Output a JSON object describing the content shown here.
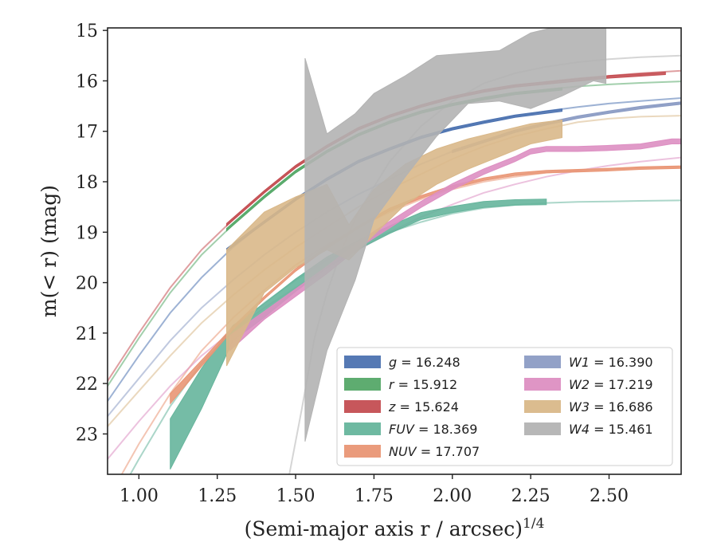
{
  "chart_data": {
    "type": "line",
    "xlabel": "(Semi-major axis r / arcsec)",
    "xlabel_exponent": "1/4",
    "ylabel": "m(< r) (mag)",
    "xlim": [
      0.9,
      2.73
    ],
    "ylim": [
      23.8,
      14.95
    ],
    "y_inverted": true,
    "grid": false,
    "legend_position": "lower-right",
    "xticks": [
      "1.00",
      "1.25",
      "1.50",
      "1.75",
      "2.00",
      "2.25",
      "2.50"
    ],
    "yticks": [
      "15",
      "16",
      "17",
      "18",
      "19",
      "20",
      "21",
      "22",
      "23"
    ],
    "series": [
      {
        "name": "g",
        "total": "16.248",
        "color": "#4c72b0",
        "model_x": [
          0.9,
          1.0,
          1.1,
          1.2,
          1.3,
          1.4,
          1.5,
          1.6,
          1.7,
          1.8,
          1.9,
          2.0,
          2.1,
          2.2,
          2.3,
          2.4,
          2.5,
          2.6,
          2.73
        ],
        "model_y": [
          22.35,
          21.45,
          20.6,
          19.9,
          19.3,
          18.8,
          18.35,
          17.95,
          17.6,
          17.35,
          17.12,
          16.95,
          16.82,
          16.7,
          16.6,
          16.52,
          16.45,
          16.4,
          16.34
        ],
        "band_x": [
          1.28,
          1.4,
          1.5,
          1.6,
          1.7,
          1.8,
          1.9,
          2.0,
          2.1,
          2.2,
          2.35
        ],
        "band_y": [
          19.35,
          18.8,
          18.35,
          17.95,
          17.6,
          17.35,
          17.12,
          16.95,
          16.82,
          16.7,
          16.58
        ],
        "band_w": [
          0.05,
          0.05,
          0.05,
          0.05,
          0.05,
          0.05,
          0.05,
          0.05,
          0.05,
          0.05,
          0.05
        ]
      },
      {
        "name": "r",
        "total": "15.912",
        "color": "#55a868",
        "model_x": [
          0.9,
          1.0,
          1.1,
          1.2,
          1.3,
          1.4,
          1.5,
          1.6,
          1.7,
          1.8,
          1.9,
          2.0,
          2.1,
          2.2,
          2.3,
          2.4,
          2.5,
          2.6,
          2.73
        ],
        "model_y": [
          22.05,
          21.1,
          20.2,
          19.45,
          18.85,
          18.3,
          17.8,
          17.4,
          17.07,
          16.82,
          16.62,
          16.47,
          16.35,
          16.25,
          16.17,
          16.11,
          16.07,
          16.04,
          16.01
        ],
        "band_x": [
          1.28,
          1.4,
          1.5,
          1.6,
          1.7,
          1.8,
          1.9,
          2.0,
          2.1,
          2.2,
          2.35
        ],
        "band_y": [
          18.95,
          18.3,
          17.8,
          17.4,
          17.07,
          16.82,
          16.62,
          16.47,
          16.35,
          16.25,
          16.16
        ],
        "band_w": [
          0.05,
          0.05,
          0.05,
          0.05,
          0.05,
          0.05,
          0.05,
          0.05,
          0.05,
          0.05,
          0.05
        ]
      },
      {
        "name": "z",
        "total": "15.624",
        "color": "#c44e52",
        "model_x": [
          0.9,
          1.0,
          1.1,
          1.2,
          1.3,
          1.4,
          1.5,
          1.6,
          1.7,
          1.8,
          1.9,
          2.0,
          2.1,
          2.2,
          2.3,
          2.4,
          2.5,
          2.6,
          2.73
        ],
        "model_y": [
          21.95,
          21.0,
          20.1,
          19.35,
          18.75,
          18.2,
          17.7,
          17.3,
          16.95,
          16.7,
          16.5,
          16.33,
          16.2,
          16.1,
          16.02,
          15.95,
          15.9,
          15.85,
          15.8
        ],
        "band_x": [
          1.28,
          1.4,
          1.5,
          1.6,
          1.7,
          1.8,
          1.9,
          2.0,
          2.1,
          2.2,
          2.35,
          2.5,
          2.68
        ],
        "band_y": [
          18.85,
          18.2,
          17.7,
          17.3,
          16.95,
          16.7,
          16.5,
          16.33,
          16.2,
          16.1,
          16.01,
          15.92,
          15.85
        ],
        "band_w": [
          0.05,
          0.05,
          0.05,
          0.05,
          0.05,
          0.05,
          0.05,
          0.05,
          0.05,
          0.05,
          0.05,
          0.05,
          0.05
        ]
      },
      {
        "name": "FUV",
        "total": "18.369",
        "color": "#66b59c",
        "model_x": [
          0.9,
          1.0,
          1.1,
          1.2,
          1.3,
          1.4,
          1.5,
          1.6,
          1.7,
          1.8,
          1.9,
          2.0,
          2.1,
          2.2,
          2.3,
          2.4,
          2.5,
          2.6,
          2.73
        ],
        "model_y": [
          24.6,
          23.5,
          22.45,
          21.6,
          20.95,
          20.4,
          19.95,
          19.55,
          19.25,
          19.0,
          18.8,
          18.63,
          18.52,
          18.46,
          18.42,
          18.4,
          18.39,
          18.38,
          18.37
        ],
        "band_x": [
          1.1,
          1.2,
          1.3,
          1.4,
          1.5,
          1.6,
          1.7,
          1.8,
          1.9,
          2.0,
          2.1,
          2.2,
          2.3
        ],
        "band_y": [
          23.2,
          22.1,
          21.0,
          20.55,
          20.05,
          19.6,
          19.25,
          18.95,
          18.68,
          18.55,
          18.45,
          18.41,
          18.4
        ],
        "band_w": [
          1.0,
          0.8,
          0.3,
          0.28,
          0.25,
          0.22,
          0.18,
          0.15,
          0.14,
          0.12,
          0.12,
          0.11,
          0.11
        ]
      },
      {
        "name": "NUV",
        "total": "17.707",
        "color": "#e99675",
        "model_x": [
          0.9,
          1.0,
          1.1,
          1.2,
          1.3,
          1.4,
          1.5,
          1.6,
          1.7,
          1.8,
          1.9,
          2.0,
          2.1,
          2.2,
          2.3,
          2.4,
          2.5,
          2.6,
          2.73
        ],
        "model_y": [
          24.3,
          23.2,
          22.2,
          21.35,
          20.7,
          20.15,
          19.65,
          19.25,
          18.9,
          18.6,
          18.35,
          18.15,
          18.0,
          17.9,
          17.82,
          17.77,
          17.74,
          17.72,
          17.71
        ],
        "band_x": [
          1.1,
          1.2,
          1.3,
          1.4,
          1.5,
          1.6,
          1.7,
          1.8,
          1.9,
          2.0,
          2.1,
          2.2,
          2.3,
          2.4,
          2.5,
          2.6,
          2.73
        ],
        "band_y": [
          22.3,
          21.6,
          20.9,
          20.3,
          19.75,
          19.3,
          18.9,
          18.55,
          18.3,
          18.1,
          17.95,
          17.85,
          17.8,
          17.78,
          17.76,
          17.73,
          17.71
        ],
        "band_w": [
          0.2,
          0.12,
          0.06,
          0.05,
          0.05,
          0.05,
          0.05,
          0.05,
          0.05,
          0.05,
          0.05,
          0.05,
          0.05,
          0.05,
          0.05,
          0.05,
          0.05
        ]
      },
      {
        "name": "W1",
        "total": "16.390",
        "color": "#8c9cc4",
        "model_x": [
          0.9,
          1.0,
          1.1,
          1.2,
          1.3,
          1.4,
          1.5,
          1.6,
          1.7,
          1.8,
          1.9,
          2.0,
          2.1,
          2.2,
          2.3,
          2.4,
          2.5,
          2.6,
          2.73
        ],
        "model_y": [
          22.65,
          21.9,
          21.15,
          20.5,
          19.95,
          19.45,
          19.0,
          18.6,
          18.25,
          17.95,
          17.65,
          17.4,
          17.2,
          17.0,
          16.85,
          16.72,
          16.62,
          16.53,
          16.44
        ],
        "band_x": [
          2.0,
          2.1,
          2.2,
          2.3,
          2.4,
          2.5,
          2.6,
          2.73
        ],
        "band_y": [
          17.4,
          17.2,
          17.0,
          16.85,
          16.72,
          16.62,
          16.53,
          16.44
        ],
        "band_w": [
          0.05,
          0.05,
          0.05,
          0.05,
          0.05,
          0.05,
          0.05,
          0.05
        ]
      },
      {
        "name": "W2",
        "total": "17.219",
        "color": "#dd8fc2",
        "model_x": [
          0.9,
          1.0,
          1.1,
          1.2,
          1.3,
          1.4,
          1.5,
          1.6,
          1.7,
          1.8,
          1.9,
          2.0,
          2.1,
          2.2,
          2.3,
          2.4,
          2.5,
          2.6,
          2.73
        ],
        "model_y": [
          23.5,
          22.75,
          22.05,
          21.45,
          20.95,
          20.5,
          20.1,
          19.7,
          19.35,
          19.0,
          18.7,
          18.45,
          18.22,
          18.05,
          17.9,
          17.78,
          17.68,
          17.6,
          17.52
        ],
        "band_x": [
          1.29,
          1.4,
          1.5,
          1.6,
          1.7,
          1.8,
          1.9,
          2.0,
          2.1,
          2.2,
          2.25,
          2.3,
          2.4,
          2.5,
          2.6,
          2.7,
          2.73
        ],
        "band_y": [
          21.2,
          20.65,
          20.2,
          19.75,
          19.25,
          18.85,
          18.45,
          18.1,
          17.8,
          17.55,
          17.4,
          17.35,
          17.35,
          17.33,
          17.3,
          17.2,
          17.2
        ],
        "band_w": [
          0.3,
          0.16,
          0.15,
          0.14,
          0.13,
          0.13,
          0.12,
          0.12,
          0.11,
          0.1,
          0.1,
          0.1,
          0.1,
          0.1,
          0.1,
          0.1,
          0.1
        ]
      },
      {
        "name": "W3",
        "total": "16.686",
        "color": "#d9b889",
        "model_x": [
          0.9,
          1.0,
          1.1,
          1.2,
          1.3,
          1.4,
          1.5,
          1.6,
          1.7,
          1.8,
          1.9,
          2.0,
          2.1,
          2.2,
          2.3,
          2.4,
          2.5,
          2.6,
          2.73
        ],
        "model_y": [
          22.85,
          22.15,
          21.45,
          20.8,
          20.25,
          19.75,
          19.3,
          18.9,
          18.5,
          18.15,
          17.85,
          17.55,
          17.3,
          17.1,
          16.95,
          16.82,
          16.75,
          16.71,
          16.69
        ],
        "band_x": [
          1.28,
          1.4,
          1.5,
          1.6,
          1.67,
          1.75,
          1.85,
          1.95,
          2.05,
          2.15,
          2.25,
          2.35
        ],
        "band_y": [
          20.5,
          19.4,
          19.0,
          18.7,
          19.2,
          18.6,
          18.05,
          17.7,
          17.45,
          17.25,
          17.05,
          16.95
        ],
        "band_w": [
          2.3,
          1.6,
          1.4,
          1.3,
          0.7,
          0.9,
          0.8,
          0.7,
          0.6,
          0.5,
          0.4,
          0.35
        ]
      },
      {
        "name": "W4",
        "total": "15.461",
        "color": "#b3b3b3",
        "model_x": [
          1.48,
          1.52,
          1.56,
          1.6,
          1.65,
          1.7,
          1.8,
          1.9,
          2.0,
          2.1,
          2.2,
          2.3,
          2.4,
          2.5,
          2.6,
          2.73
        ],
        "model_y": [
          23.8,
          22.5,
          21.1,
          20.2,
          19.3,
          18.6,
          17.6,
          16.9,
          16.4,
          16.05,
          15.85,
          15.72,
          15.63,
          15.57,
          15.53,
          15.5
        ],
        "band_x": [
          1.53,
          1.6,
          1.69,
          1.75,
          1.85,
          1.95,
          2.05,
          2.15,
          2.25,
          2.35,
          2.45,
          2.49
        ],
        "band_y": [
          19.35,
          19.2,
          18.3,
          17.5,
          16.9,
          16.3,
          15.95,
          15.9,
          15.8,
          15.6,
          15.4,
          15.45
        ],
        "band_w": [
          7.6,
          4.3,
          3.3,
          2.5,
          2.0,
          1.6,
          1.0,
          1.0,
          1.5,
          1.4,
          1.2,
          1.2
        ]
      }
    ]
  }
}
